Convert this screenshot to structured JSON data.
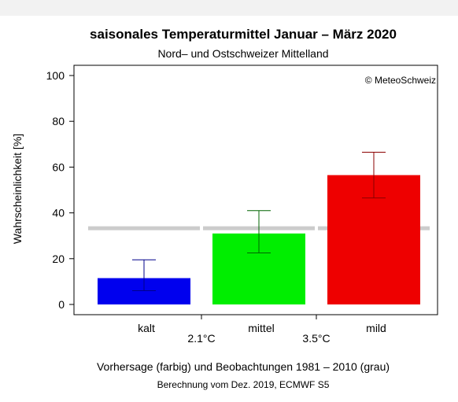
{
  "chart_data": {
    "type": "bar",
    "title": "saisonales Temperaturmittel Januar – März 2020",
    "subtitle": "Nord– und Ostschweizer Mittelland",
    "ylabel": "Wahrscheinlichkeit [%]",
    "ylim": [
      0,
      100
    ],
    "yticks": [
      "0",
      "20",
      "40",
      "60",
      "80",
      "100"
    ],
    "copyright": "© MeteoSchweiz",
    "categories": [
      "kalt",
      "mittel",
      "mild"
    ],
    "thresholds": [
      "2.1°C",
      "3.5°C"
    ],
    "series": [
      {
        "values": [
          11.5,
          31,
          56.5
        ],
        "error_low": [
          6,
          22.5,
          46.5
        ],
        "error_high": [
          19.5,
          41,
          66.5
        ],
        "colors": [
          "#0000ee",
          "#00ee00",
          "#ee0000"
        ],
        "error_colors": [
          "#00008b",
          "#006400",
          "#8b0000"
        ]
      },
      {
        "values": [
          33.3,
          33.3,
          33.3
        ],
        "color": "#cccccc"
      }
    ],
    "footer_line1": "Vorhersage (farbig) und Beobachtungen 1981 – 2010 (grau)",
    "footer_line2": "Berechnung vom Dez. 2019, ECMWF S5"
  }
}
